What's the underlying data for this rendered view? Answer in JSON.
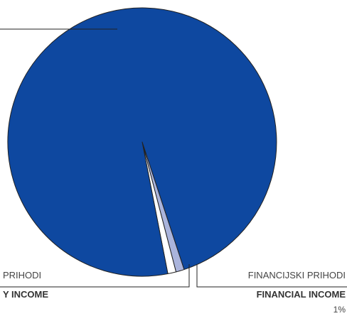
{
  "chart_data": {
    "type": "pie",
    "slices": [
      {
        "label": "PRIHODI",
        "label_en": "Y INCOME",
        "value": 98,
        "color": "#0e48a0"
      },
      {
        "label": "",
        "label_en": "",
        "value": 1,
        "color": "#aab4dc"
      },
      {
        "label": "FINANCIJSKI PRIHODI",
        "label_en": "FINANCIAL INCOME",
        "value": 1,
        "value_label": "1%",
        "color": "#ffffff"
      }
    ]
  }
}
